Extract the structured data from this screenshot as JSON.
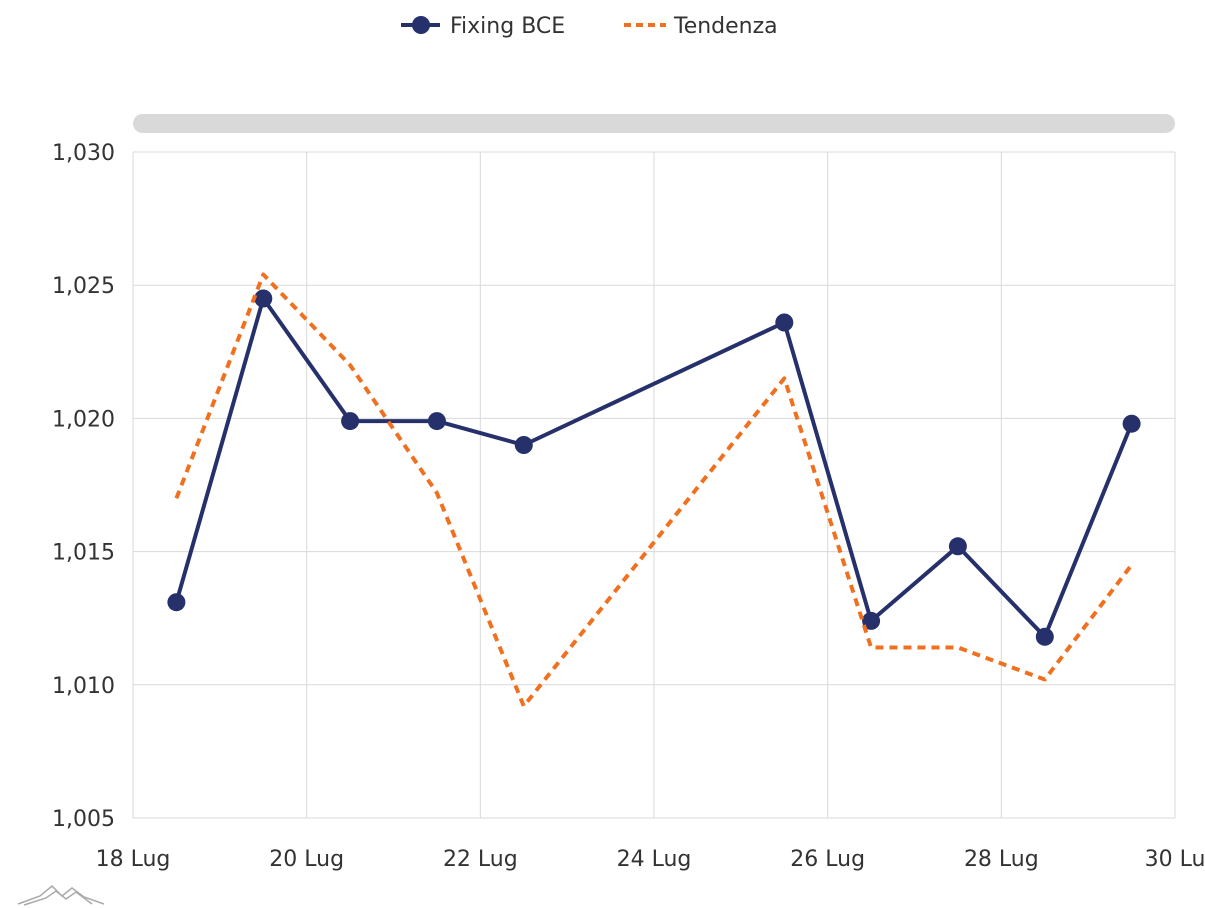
{
  "chart_data": {
    "type": "line",
    "title": "",
    "xlabel": "",
    "ylabel": "",
    "x_ticks": [
      "18 Lug",
      "20 Lug",
      "22 Lug",
      "24 Lug",
      "26 Lug",
      "28 Lug",
      "30 Lu"
    ],
    "y_ticks": [
      "1,005",
      "1,010",
      "1,015",
      "1,020",
      "1,025",
      "1,030"
    ],
    "ylim": [
      1.005,
      1.03
    ],
    "xlim": [
      "2022-07-18",
      "2022-07-30"
    ],
    "grid": true,
    "legend_position": "top-center",
    "series": [
      {
        "name": "Fixing BCE",
        "color": "#26306a",
        "style": "solid-with-markers",
        "points": [
          {
            "x": "2022-07-18T12:00",
            "y": 1.0131
          },
          {
            "x": "2022-07-19T12:00",
            "y": 1.0245
          },
          {
            "x": "2022-07-20T12:00",
            "y": 1.0199
          },
          {
            "x": "2022-07-21T12:00",
            "y": 1.0199
          },
          {
            "x": "2022-07-22T12:00",
            "y": 1.019
          },
          {
            "x": "2022-07-25T12:00",
            "y": 1.0236
          },
          {
            "x": "2022-07-26T12:00",
            "y": 1.0124
          },
          {
            "x": "2022-07-27T12:00",
            "y": 1.0152
          },
          {
            "x": "2022-07-28T12:00",
            "y": 1.0118
          },
          {
            "x": "2022-07-29T12:00",
            "y": 1.0198
          }
        ]
      },
      {
        "name": "Tendenza",
        "color": "#f07020",
        "style": "dashed",
        "points": [
          {
            "x": "2022-07-18T12:00",
            "y": 1.017
          },
          {
            "x": "2022-07-19T12:00",
            "y": 1.0254
          },
          {
            "x": "2022-07-20T12:00",
            "y": 1.022
          },
          {
            "x": "2022-07-21T12:00",
            "y": 1.0172
          },
          {
            "x": "2022-07-22T12:00",
            "y": 1.0092
          },
          {
            "x": "2022-07-25T12:00",
            "y": 1.0215
          },
          {
            "x": "2022-07-26T12:00",
            "y": 1.0114
          },
          {
            "x": "2022-07-27T12:00",
            "y": 1.0114
          },
          {
            "x": "2022-07-28T12:00",
            "y": 1.0102
          },
          {
            "x": "2022-07-29T12:00",
            "y": 1.0145
          }
        ]
      }
    ]
  },
  "scrollbar": {
    "color": "#d9d9d9"
  },
  "watermark": {
    "icon": "mountain-logo-icon"
  }
}
